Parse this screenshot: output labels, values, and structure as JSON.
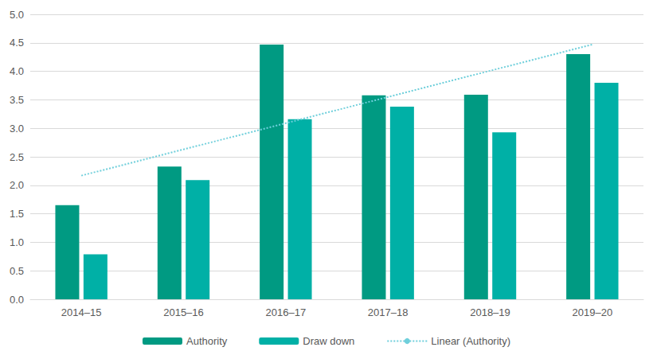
{
  "chart_data": {
    "type": "bar",
    "categories": [
      "2014–15",
      "2015–16",
      "2016–17",
      "2017–18",
      "2018–19",
      "2019–20"
    ],
    "series": [
      {
        "name": "Authority",
        "type": "bar",
        "color": "#009a82",
        "values": [
          1.65,
          2.33,
          4.47,
          3.58,
          3.59,
          4.3
        ]
      },
      {
        "name": "Draw down",
        "type": "bar",
        "color": "#00b0a6",
        "values": [
          0.79,
          2.09,
          3.16,
          3.38,
          2.93,
          3.8
        ]
      },
      {
        "name": "Linear (Authority)",
        "type": "line",
        "line_style": "dotted",
        "color": "#6fcfdb",
        "values": [
          2.17,
          2.63,
          3.09,
          3.55,
          4.01,
          4.47
        ]
      }
    ],
    "ylim": [
      0,
      5
    ],
    "yticks": [
      {
        "value": 0,
        "label": "0.0"
      },
      0.5,
      {
        "value": 1,
        "label": "1.0"
      },
      1.5,
      {
        "value": 2,
        "label": "2.0"
      },
      2.5,
      {
        "value": 3,
        "label": "3.0"
      },
      3.5,
      {
        "value": 4,
        "label": "4.0"
      },
      4.5,
      {
        "value": 5,
        "label": "5.0"
      }
    ],
    "grid": true,
    "legend": "bottom"
  }
}
